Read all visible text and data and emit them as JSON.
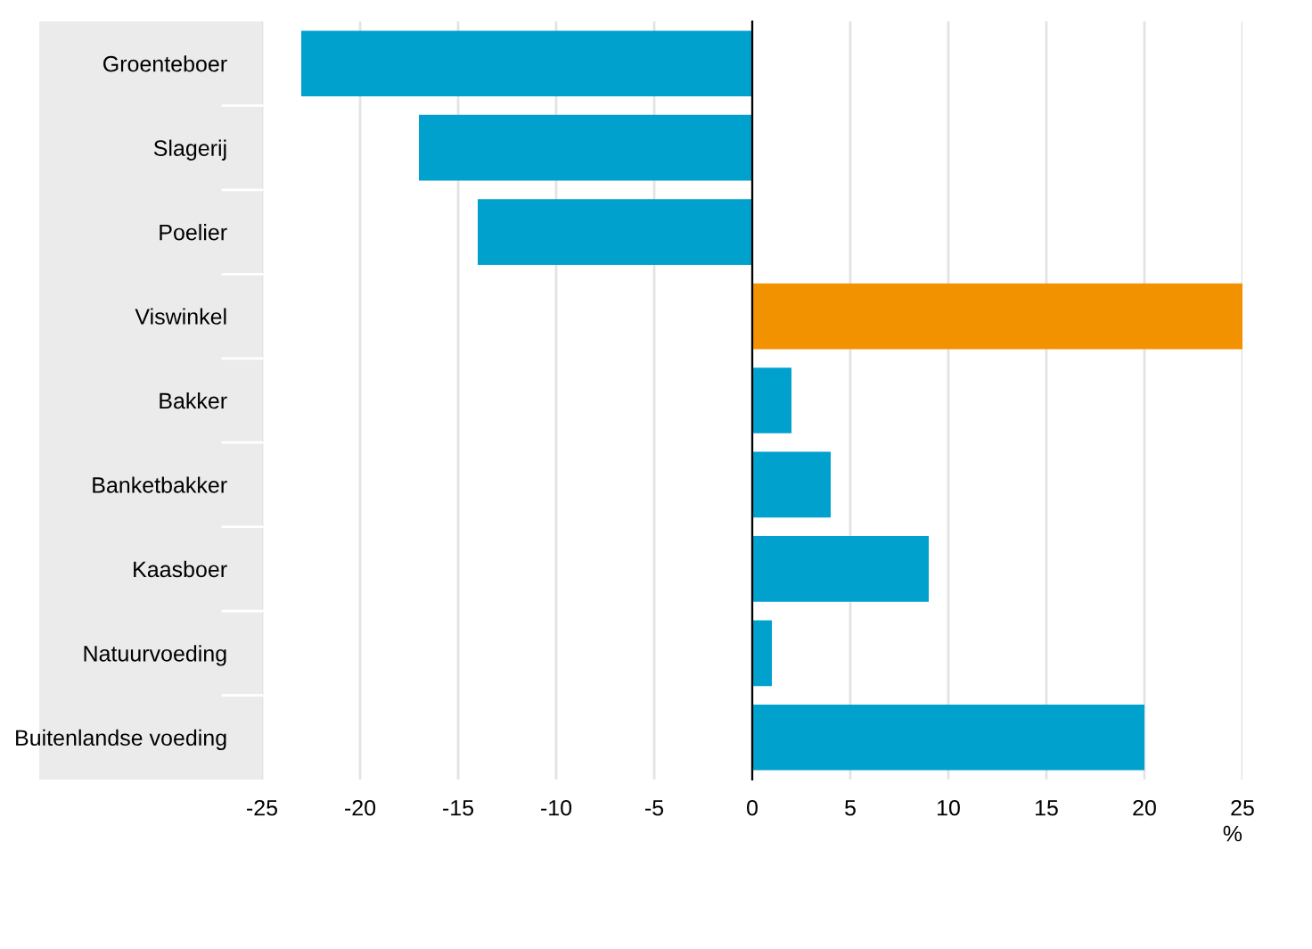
{
  "chart_data": {
    "type": "bar",
    "orientation": "horizontal",
    "xlabel": "%",
    "categories": [
      "Groenteboer",
      "Slagerij",
      "Poelier",
      "Viswinkel",
      "Bakker",
      "Banketbakker",
      "Kaasboer",
      "Natuurvoeding",
      "Buitenlandse voeding"
    ],
    "values": [
      -23,
      -17,
      -14,
      25,
      2,
      4,
      9,
      1,
      20
    ],
    "colors": [
      "#00a1cd",
      "#00a1cd",
      "#00a1cd",
      "#f39200",
      "#00a1cd",
      "#00a1cd",
      "#00a1cd",
      "#00a1cd",
      "#00a1cd"
    ],
    "xlim": [
      -25,
      25
    ],
    "xticks": [
      -25,
      -20,
      -15,
      -10,
      -5,
      0,
      5,
      10,
      15,
      20,
      25
    ],
    "grid": "x"
  }
}
